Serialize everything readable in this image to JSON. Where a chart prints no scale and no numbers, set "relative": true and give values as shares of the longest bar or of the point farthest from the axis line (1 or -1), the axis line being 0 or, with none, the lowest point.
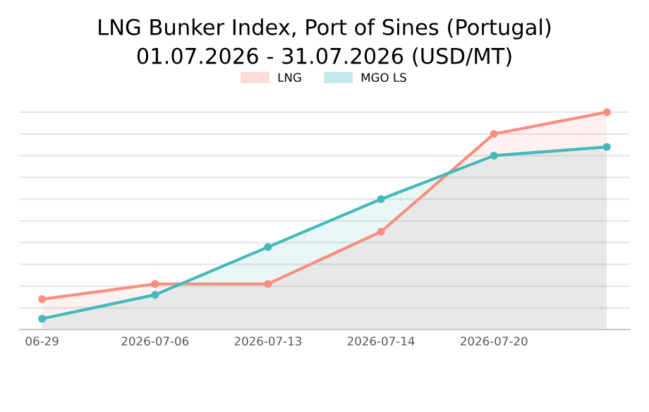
{
  "chart_data": {
    "type": "area",
    "title": "LNG Bunker Index, Port of Sines (Portugal)",
    "subtitle": "01.07.2026 - 31.07.2026 (USD/MT)",
    "categories": [
      "06-29",
      "2026-07-06",
      "2026-07-13",
      "2026-07-14",
      "2026-07-20",
      null
    ],
    "relative": true,
    "series": [
      {
        "name": "LNG",
        "color": "#fa8e7e",
        "values": [
          0.14,
          0.21,
          0.21,
          0.45,
          0.9,
          1.0
        ]
      },
      {
        "name": "MGO LS",
        "color": "#45b8b8",
        "values": [
          0.05,
          0.16,
          0.38,
          0.6,
          0.8,
          0.84
        ]
      }
    ],
    "grid": "y",
    "legend": "top",
    "marker": "circle",
    "line_style": "solid"
  }
}
